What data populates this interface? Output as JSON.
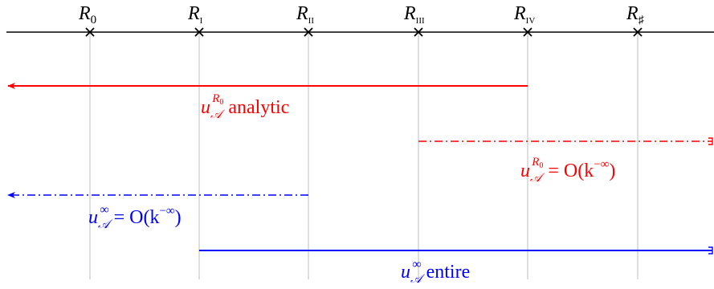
{
  "axis": {
    "points": [
      {
        "id": "r0",
        "base": "R",
        "sub": "0"
      },
      {
        "id": "r1",
        "base": "R",
        "sub": "I"
      },
      {
        "id": "r2",
        "base": "R",
        "sub": "II"
      },
      {
        "id": "r3",
        "base": "R",
        "sub": "III"
      },
      {
        "id": "r4",
        "base": "R",
        "sub": "IV"
      },
      {
        "id": "r5",
        "base": "R",
        "sub": "♯"
      }
    ]
  },
  "ranges": [
    {
      "id": "r0-analytic",
      "color": "#ff0000",
      "style": "solid",
      "from": "r4",
      "to": "left-edge",
      "label": {
        "base": "u",
        "sub": "𝒜",
        "sup_base": "R",
        "sup_sub": "0",
        "rest": " analytic"
      }
    },
    {
      "id": "r0-decay",
      "color": "#ff0000",
      "style": "dashdot",
      "from": "r3",
      "to": "right-edge",
      "label": {
        "base": "u",
        "sub": "𝒜",
        "sup_base": "R",
        "sup_sub": "0",
        "rest": " = O(k",
        "rest_sup": "−∞",
        "rest_end": ")"
      }
    },
    {
      "id": "inf-decay",
      "color": "#0000ff",
      "style": "dashdot",
      "from": "r2",
      "to": "left-edge",
      "label": {
        "base": "u",
        "sub": "𝒜",
        "sup": "∞",
        "rest": " = O(k",
        "rest_sup": "−∞",
        "rest_end": ")"
      }
    },
    {
      "id": "inf-entire",
      "color": "#0000ff",
      "style": "solid",
      "from": "r1",
      "to": "right-edge",
      "label": {
        "base": "u",
        "sub": "𝒜",
        "sup": "∞",
        "rest": " entire"
      }
    }
  ]
}
